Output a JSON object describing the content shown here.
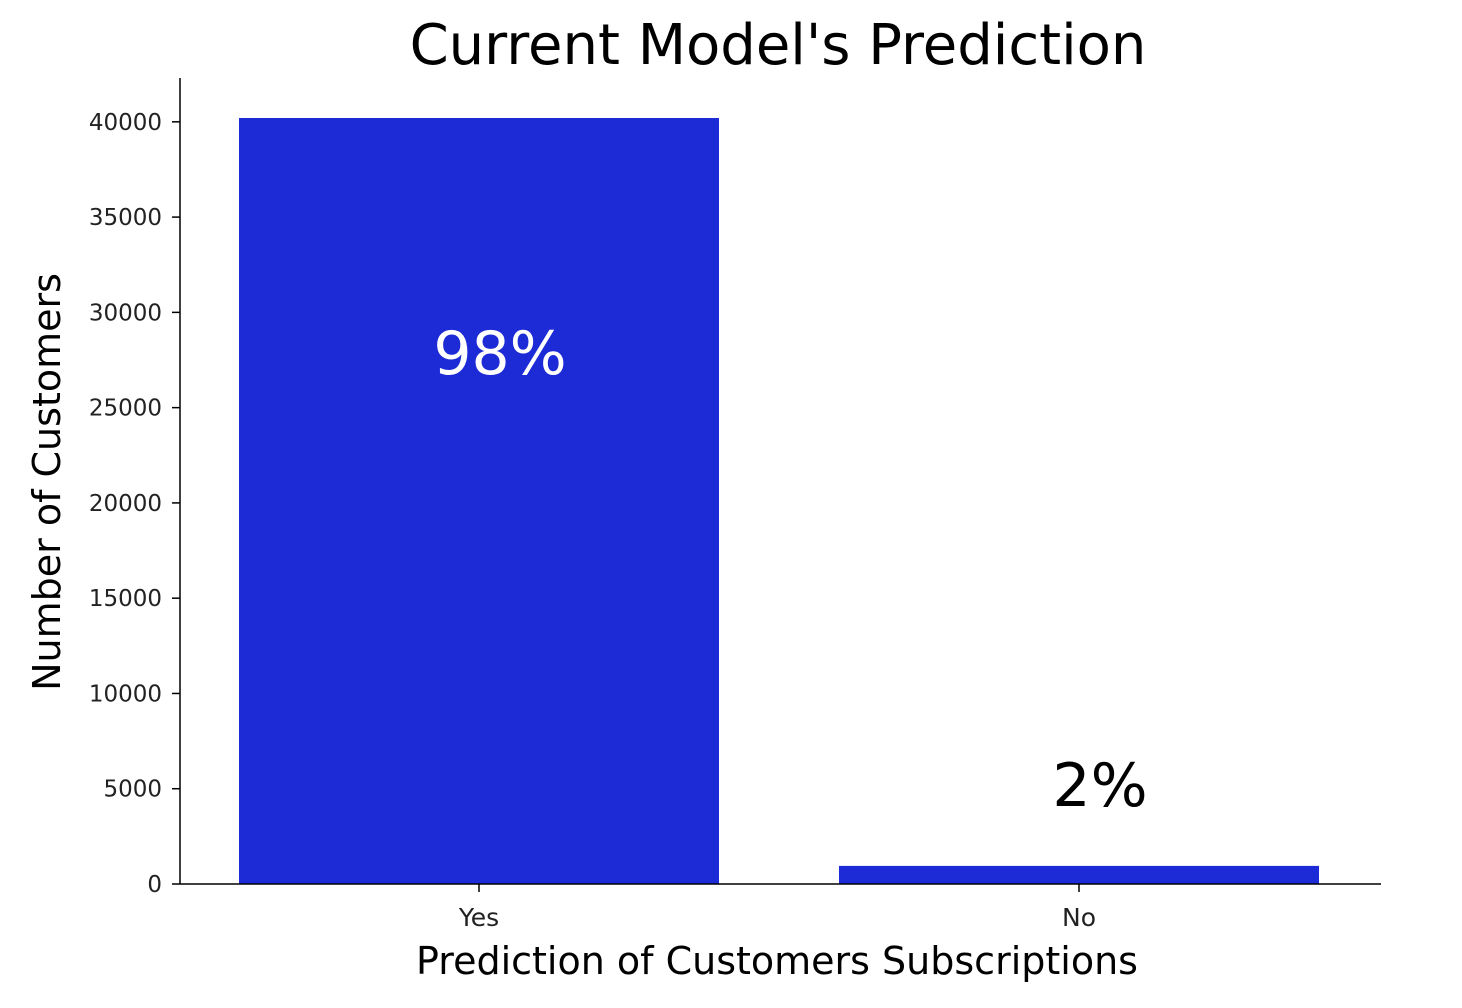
{
  "chart_data": {
    "type": "bar",
    "title": "Current Model's Prediction",
    "xlabel": "Prediction of Customers Subscriptions",
    "ylabel": "Number of Customers",
    "categories": [
      "Yes",
      "No"
    ],
    "values": [
      40200,
      950
    ],
    "data_labels": [
      "98%",
      "2%"
    ],
    "ylim": [
      0,
      42300
    ],
    "yticks": [
      0,
      5000,
      10000,
      15000,
      20000,
      25000,
      30000,
      35000,
      40000
    ],
    "grid": false,
    "legend": "none",
    "colors": {
      "bar": "#1c2bd6",
      "label_inside": "#ffffff",
      "label_outside": "#000000",
      "axis": "#000000"
    }
  }
}
